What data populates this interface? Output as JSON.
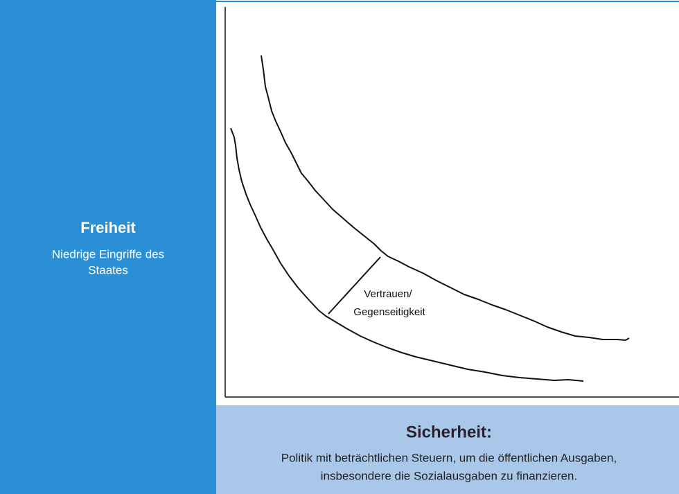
{
  "left": {
    "title": "Freiheit",
    "lines": [
      "Niedrige Eingriffe des",
      "Staates"
    ]
  },
  "bottom": {
    "title": "Sicherheit:",
    "lines": [
      "Politik mit beträchtlichen Steuern, um die öffentlichen Ausgaben,",
      "insbesondere die Sozialausgaben zu finanzieren."
    ]
  },
  "annotation": [
    "Vertrauen/",
    "Gegenseitigkeit"
  ]
}
